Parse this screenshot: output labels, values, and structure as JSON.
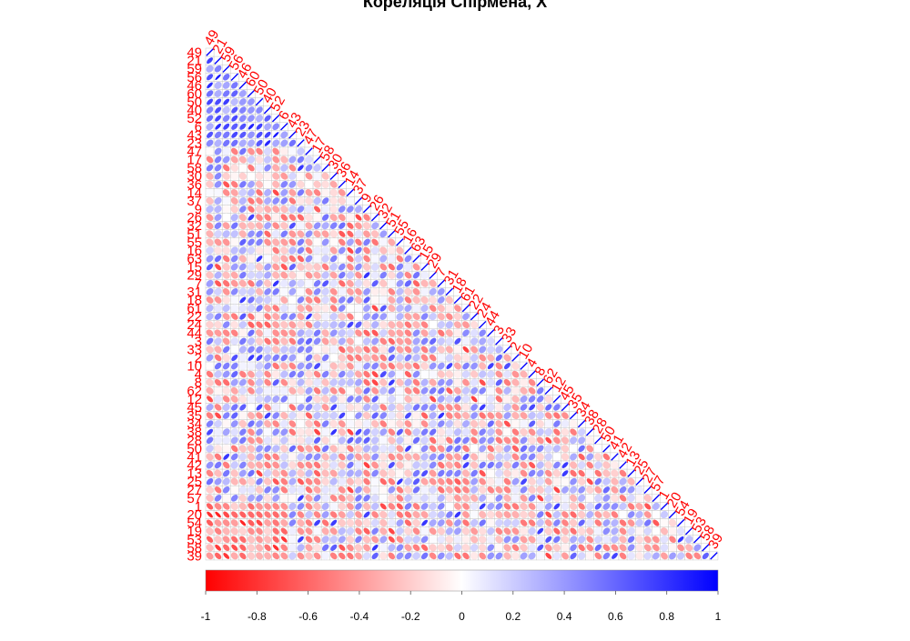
{
  "chart_data": {
    "type": "heatmap",
    "subtype": "correlation-matrix-lower-triangle-ellipses",
    "title": "Кореляція Спірмена, X",
    "variables": [
      "49",
      "21",
      "59",
      "56",
      "46",
      "60",
      "50",
      "40",
      "52",
      "6",
      "43",
      "23",
      "47",
      "17",
      "58",
      "30",
      "36",
      "14",
      "37",
      "9",
      "26",
      "32",
      "51",
      "55",
      "16",
      "63",
      "15",
      "29",
      "7",
      "31",
      "18",
      "61",
      "22",
      "24",
      "44",
      "3",
      "33",
      "2",
      "10",
      "4",
      "8",
      "62",
      "12",
      "45",
      "35",
      "34",
      "38",
      "28",
      "50",
      "41",
      "42",
      "13",
      "25",
      "27",
      "57",
      "1",
      "20",
      "54",
      "19",
      "53",
      "58",
      "39"
    ],
    "matrix_shape": "lower-triangle",
    "colorbar": {
      "min": -1,
      "max": 1,
      "ticks": [
        "-1",
        "-0.8",
        "-0.6",
        "-0.4",
        "-0.2",
        "0",
        "0.2",
        "0.4",
        "0.6",
        "0.8",
        "1"
      ],
      "colors": {
        "negative": "#ff0000",
        "zero": "#ffffff",
        "positive": "#0000ff"
      }
    },
    "label_color": "#ff0000",
    "diagonal_value": 1,
    "approximate_values": true
  }
}
